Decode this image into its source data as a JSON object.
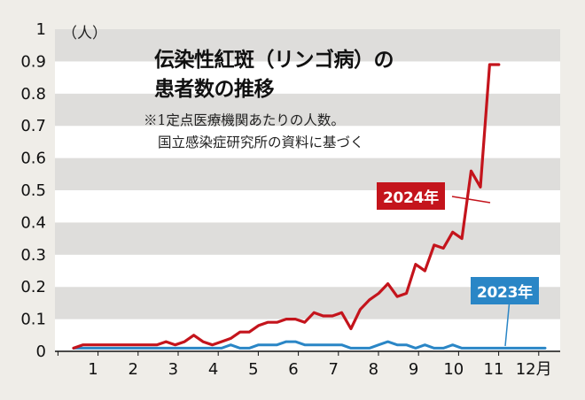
{
  "chart_data": {
    "type": "line",
    "title_line1": "伝染性紅斑（リンゴ病）の",
    "title_line2": "患者数の推移",
    "note_line1": "※1定点医療機関あたりの人数。",
    "note_line2": "国立感染症研究所の資料に基づく",
    "y_unit": "（人）",
    "ylim": [
      0,
      1
    ],
    "y_ticks": [
      "0",
      "0.1",
      "0.2",
      "0.3",
      "0.4",
      "0.5",
      "0.6",
      "0.7",
      "0.8",
      "0.9",
      "1"
    ],
    "x_ticks": [
      "1",
      "2",
      "3",
      "4",
      "5",
      "6",
      "7",
      "8",
      "9",
      "10",
      "11",
      "12月"
    ],
    "grid": "horizontal bands",
    "series": [
      {
        "name": "2024年",
        "color": "#c4141c",
        "x": [
          1,
          2,
          3,
          4,
          5,
          6,
          7,
          8,
          9,
          10,
          11,
          12,
          13,
          14,
          15,
          16,
          17,
          18,
          19,
          20,
          21,
          22,
          23,
          24,
          25,
          26,
          27,
          28,
          29,
          30,
          31,
          32,
          33,
          34,
          35,
          36,
          37,
          38,
          39,
          40,
          41,
          42,
          43,
          44,
          45,
          46,
          47
        ],
        "values": [
          0.01,
          0.02,
          0.02,
          0.02,
          0.02,
          0.02,
          0.02,
          0.02,
          0.02,
          0.02,
          0.03,
          0.02,
          0.03,
          0.05,
          0.03,
          0.02,
          0.03,
          0.04,
          0.06,
          0.06,
          0.08,
          0.09,
          0.09,
          0.1,
          0.1,
          0.09,
          0.12,
          0.11,
          0.11,
          0.12,
          0.07,
          0.13,
          0.16,
          0.18,
          0.21,
          0.17,
          0.18,
          0.27,
          0.25,
          0.33,
          0.32,
          0.37,
          0.35,
          0.56,
          0.51,
          0.89,
          0.89
        ]
      },
      {
        "name": "2023年",
        "color": "#2a86c6",
        "x": [
          1,
          2,
          3,
          4,
          5,
          6,
          7,
          8,
          9,
          10,
          11,
          12,
          13,
          14,
          15,
          16,
          17,
          18,
          19,
          20,
          21,
          22,
          23,
          24,
          25,
          26,
          27,
          28,
          29,
          30,
          31,
          32,
          33,
          34,
          35,
          36,
          37,
          38,
          39,
          40,
          41,
          42,
          43,
          44,
          45,
          46,
          47,
          48,
          49,
          50,
          51,
          52
        ],
        "values": [
          0.01,
          0.01,
          0.01,
          0.01,
          0.01,
          0.01,
          0.01,
          0.01,
          0.01,
          0.01,
          0.01,
          0.01,
          0.01,
          0.01,
          0.01,
          0.01,
          0.01,
          0.02,
          0.01,
          0.01,
          0.02,
          0.02,
          0.02,
          0.03,
          0.03,
          0.02,
          0.02,
          0.02,
          0.02,
          0.02,
          0.01,
          0.01,
          0.01,
          0.02,
          0.03,
          0.02,
          0.02,
          0.01,
          0.02,
          0.01,
          0.01,
          0.02,
          0.01,
          0.01,
          0.01,
          0.01,
          0.01,
          0.01,
          0.01,
          0.01,
          0.01,
          0.01
        ]
      }
    ]
  }
}
